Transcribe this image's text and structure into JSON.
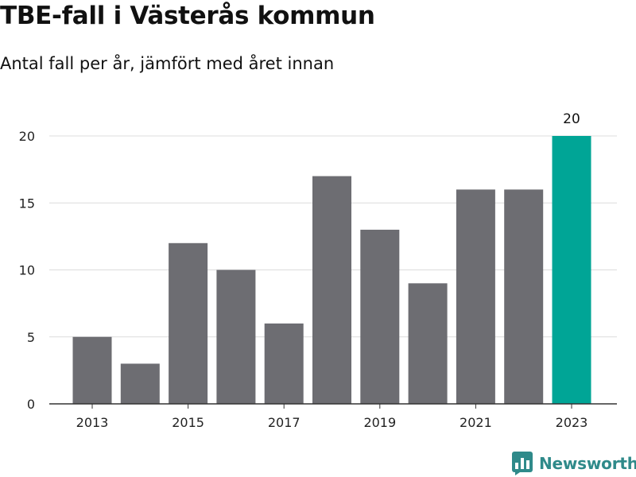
{
  "title": "TBE-fall i Västerås kommun",
  "subtitle": "Antal fall per år, jämfört med året innan",
  "brand": {
    "name": "Newsworthy",
    "icon": "newsworthy-logo-icon",
    "color": "#2f8a8a"
  },
  "chart_data": {
    "type": "bar",
    "categories": [
      "2013",
      "2014",
      "2015",
      "2016",
      "2017",
      "2018",
      "2019",
      "2020",
      "2021",
      "2022",
      "2023"
    ],
    "values": [
      5,
      3,
      12,
      10,
      6,
      17,
      13,
      9,
      16,
      16,
      20
    ],
    "x_tick_labels": [
      "2013",
      "2015",
      "2017",
      "2019",
      "2021",
      "2023"
    ],
    "y_ticks": [
      0,
      5,
      10,
      15,
      20
    ],
    "ylim": [
      0,
      20
    ],
    "grid": true,
    "bar_color": "#6d6d72",
    "highlight_color": "#00a596",
    "highlight_category": "2023",
    "data_labels": [
      {
        "category": "2023",
        "text": "20"
      }
    ]
  }
}
